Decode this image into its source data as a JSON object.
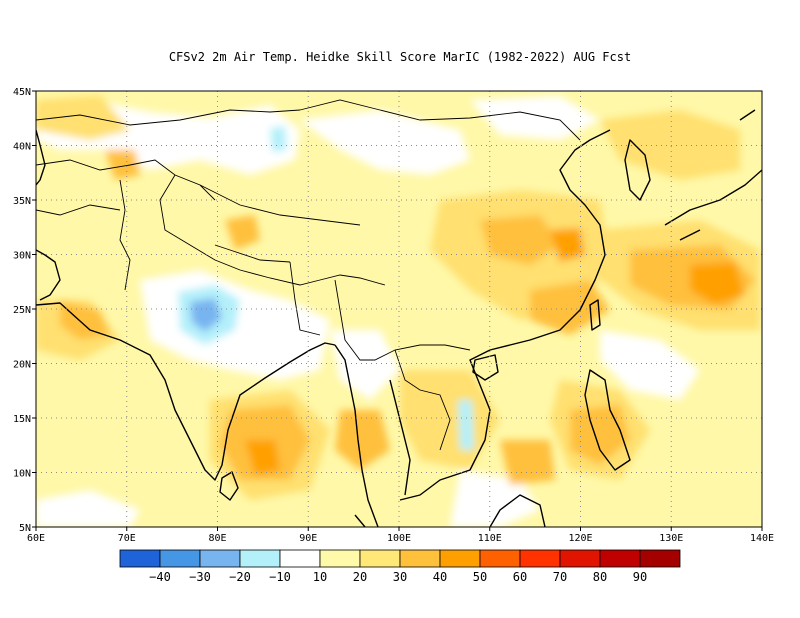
{
  "title": "CFSv2  2m Air Temp. Heidke Skill Score MarIC (1982-2022) AUG Fcst",
  "map": {
    "lon_range": [
      60,
      140
    ],
    "lat_range": [
      5,
      45
    ],
    "lon_ticks": [
      "60E",
      "70E",
      "80E",
      "90E",
      "100E",
      "110E",
      "120E",
      "130E",
      "140E"
    ],
    "lat_ticks": [
      "5N",
      "10N",
      "15N",
      "20N",
      "25N",
      "30N",
      "35N",
      "40N",
      "45N"
    ],
    "grid": "dotted"
  },
  "colorbar": {
    "colors": [
      "#1e64d8",
      "#4696e6",
      "#78b4f0",
      "#b4f0fa",
      "#ffffff",
      "#fffaaa",
      "#ffe878",
      "#ffc03c",
      "#ffa000",
      "#ff6000",
      "#ff3200",
      "#e11400",
      "#c00000",
      "#a50000"
    ],
    "labels": [
      "-40",
      "-30",
      "-20",
      "-10",
      "10",
      "20",
      "30",
      "40",
      "50",
      "60",
      "70",
      "80",
      "90"
    ]
  },
  "colors": {
    "light_yellow": "#fffaaa",
    "yellow": "#ffe878",
    "light_orange": "#ffc03c",
    "orange": "#ffa000",
    "cyan": "#b4f0fa",
    "light_blue": "#78b4f0"
  }
}
